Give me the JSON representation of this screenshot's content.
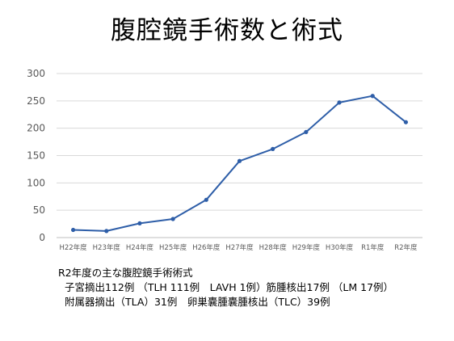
{
  "title": "腹腔鏡手術数と術式",
  "chart_data": {
    "type": "line",
    "categories": [
      "H22年度",
      "H23年度",
      "H24年度",
      "H25年度",
      "H26年度",
      "H27年度",
      "H28年度",
      "H29年度",
      "H30年度",
      "R1年度",
      "R2年度"
    ],
    "series": [
      {
        "values": [
          14,
          12,
          26,
          34,
          69,
          140,
          162,
          193,
          247,
          259,
          211
        ]
      }
    ],
    "yticks": [
      "0",
      "50",
      "100",
      "150",
      "200",
      "250",
      "300"
    ],
    "ylim": [
      0,
      300
    ],
    "grid": true,
    "line_color": "#2E5EA8",
    "grid_color": "#D9D9D9",
    "axis_color": "#BFBFBF"
  },
  "notes": {
    "heading": "R2年度の主な腹腔鏡手術術式",
    "line1": "子宮摘出112例 （TLH 111例　LAVH 1例）筋腫核出17例 （LM 17例）",
    "line2": "附属器摘出（TLA）31例　卵巣嚢腫嚢腫核出（TLC）39例"
  }
}
